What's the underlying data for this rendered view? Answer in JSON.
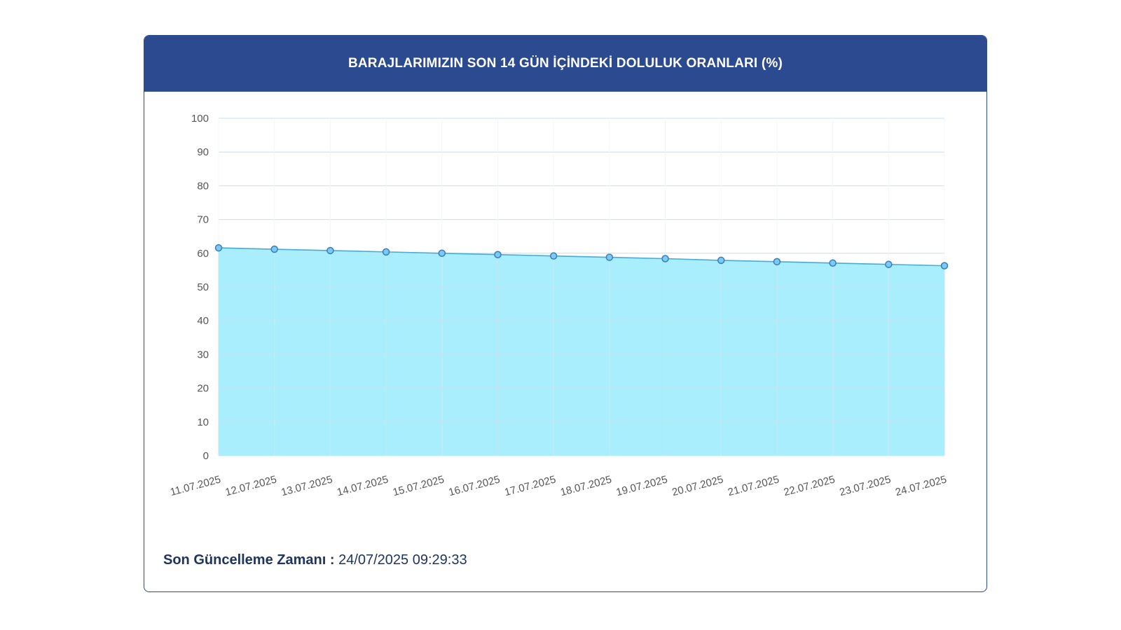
{
  "card": {
    "title": "BARAJLARIMIZIN SON 14 GÜN İÇİNDEKİ DOLULUK ORANLARI (%)"
  },
  "footer": {
    "label": "Son Güncelleme Zamanı :",
    "value": "24/07/2025 09:29:33"
  },
  "chart_data": {
    "type": "area",
    "x": [
      "11.07.2025",
      "12.07.2025",
      "13.07.2025",
      "14.07.2025",
      "15.07.2025",
      "16.07.2025",
      "17.07.2025",
      "18.07.2025",
      "19.07.2025",
      "20.07.2025",
      "21.07.2025",
      "22.07.2025",
      "23.07.2025",
      "24.07.2025"
    ],
    "series": [
      {
        "values": [
          61.6,
          61.2,
          60.8,
          60.4,
          60.0,
          59.6,
          59.2,
          58.8,
          58.4,
          57.9,
          57.5,
          57.1,
          56.7,
          56.3
        ]
      }
    ],
    "yticks": [
      0,
      10,
      20,
      30,
      40,
      50,
      60,
      70,
      80,
      90,
      100
    ],
    "ylim": [
      0,
      100
    ],
    "grid": true,
    "colors": {
      "fill": "#a8eefc",
      "line": "#4aa9d6",
      "marker": "#2f7fc4",
      "grid": "#bfe6f5",
      "header": "#2c4a8f"
    }
  }
}
